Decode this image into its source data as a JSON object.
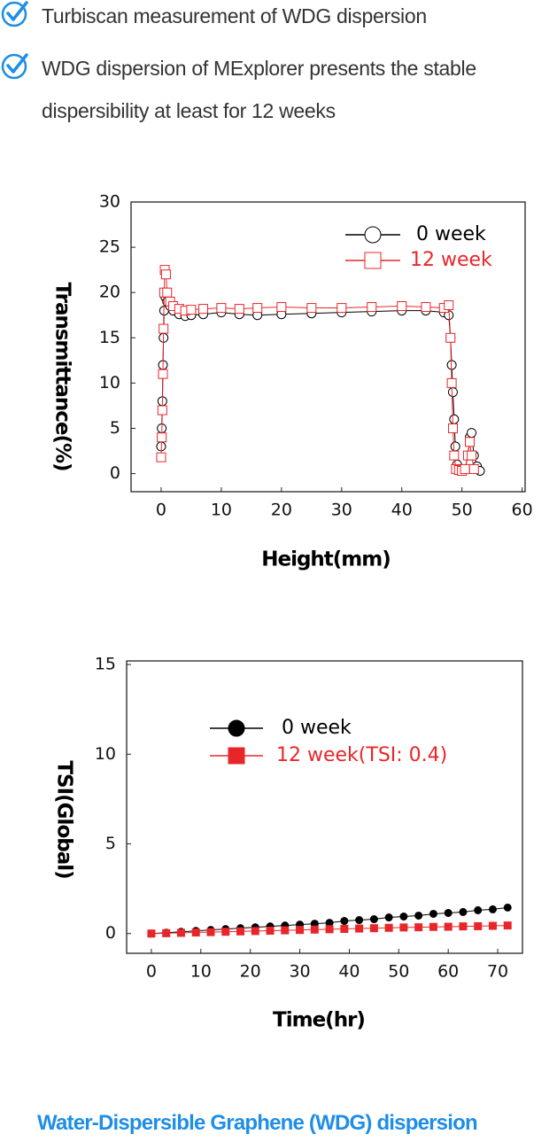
{
  "bullets": [
    "Turbiscan measurement of WDG dispersion",
    "WDG dispersion of MExplorer presents the stable dispersibility at least for 12 weeks"
  ],
  "caption": "Water-Dispersible Graphene (WDG) dispersion",
  "chart_data": [
    {
      "type": "line",
      "xlabel": "Height(mm)",
      "ylabel": "Transmittance(%)",
      "xlim": [
        -5,
        60.5
      ],
      "ylim": [
        -2,
        30
      ],
      "xticks": [
        0,
        10,
        20,
        30,
        40,
        50,
        60
      ],
      "yticks": [
        0,
        5,
        10,
        15,
        20,
        25,
        30
      ],
      "series": [
        {
          "name": "0 week",
          "color": "#000000",
          "marker": "circle",
          "filled": false,
          "x": [
            0,
            0.1,
            0.2,
            0.3,
            0.4,
            0.5,
            0.7,
            1,
            1.5,
            2,
            3,
            4,
            5,
            7,
            10,
            13,
            16,
            20,
            25,
            30,
            35,
            40,
            44,
            47,
            47.8,
            48.1,
            48.3,
            48.5,
            48.7,
            48.9,
            49.2,
            49.6,
            50,
            50.5,
            51,
            51.3,
            51.6,
            52,
            52.5,
            53
          ],
          "values": [
            3,
            5,
            8,
            12,
            15,
            18,
            19.5,
            19,
            18.5,
            18,
            17.6,
            17.4,
            17.5,
            17.6,
            17.8,
            17.6,
            17.5,
            17.6,
            17.7,
            17.8,
            17.9,
            18,
            18,
            17.8,
            17.5,
            15,
            12,
            9,
            6,
            3,
            1,
            0.4,
            0.3,
            0.5,
            2,
            4,
            4.5,
            2,
            0.8,
            0.3
          ]
        },
        {
          "name": "12 week",
          "color": "#e8262a",
          "marker": "square",
          "filled": false,
          "x": [
            0,
            0.1,
            0.2,
            0.3,
            0.4,
            0.5,
            0.6,
            0.8,
            1,
            1.5,
            2,
            3,
            4,
            5,
            7,
            10,
            13,
            16,
            20,
            25,
            30,
            35,
            40,
            44,
            47,
            47.8,
            48.1,
            48.3,
            48.5,
            48.7,
            49,
            49.5,
            50,
            50.5,
            51,
            51.3,
            51.6,
            52
          ],
          "values": [
            1.8,
            4,
            7,
            11,
            16,
            20,
            22.5,
            22,
            20,
            19,
            18.5,
            18.2,
            18,
            18.1,
            18.2,
            18.3,
            18.2,
            18.3,
            18.4,
            18.3,
            18.3,
            18.4,
            18.5,
            18.4,
            18.3,
            18.6,
            15,
            10,
            5,
            2,
            0.5,
            0.4,
            0.3,
            0.5,
            2,
            3.5,
            2,
            0.5
          ]
        }
      ]
    },
    {
      "type": "line",
      "xlabel": "Time(hr)",
      "ylabel": "TSI(Global)",
      "xlim": [
        -5,
        75
      ],
      "ylim": [
        -1.1,
        15.2
      ],
      "xticks": [
        0,
        10,
        20,
        30,
        40,
        50,
        60,
        70
      ],
      "yticks": [
        0,
        5,
        10,
        15
      ],
      "series": [
        {
          "name": "0 week",
          "color": "#000000",
          "marker": "circle",
          "filled": true,
          "x": [
            0,
            3,
            6,
            9,
            12,
            15,
            18,
            21,
            24,
            27,
            30,
            33,
            36,
            39,
            42,
            45,
            48,
            51,
            54,
            57,
            60,
            63,
            66,
            69,
            72
          ],
          "values": [
            0,
            0.05,
            0.1,
            0.15,
            0.2,
            0.25,
            0.3,
            0.35,
            0.4,
            0.45,
            0.5,
            0.55,
            0.6,
            0.7,
            0.75,
            0.8,
            0.9,
            0.95,
            1,
            1.1,
            1.15,
            1.2,
            1.3,
            1.35,
            1.45
          ]
        },
        {
          "name": "12 week(TSI: 0.4)",
          "color": "#e8262a",
          "marker": "square",
          "filled": true,
          "x": [
            0,
            3,
            6,
            9,
            12,
            15,
            18,
            21,
            24,
            27,
            30,
            33,
            36,
            39,
            42,
            45,
            48,
            51,
            54,
            57,
            60,
            63,
            66,
            69,
            72
          ],
          "values": [
            0,
            0.02,
            0.04,
            0.06,
            0.08,
            0.1,
            0.12,
            0.14,
            0.16,
            0.18,
            0.2,
            0.22,
            0.24,
            0.26,
            0.28,
            0.3,
            0.32,
            0.34,
            0.35,
            0.37,
            0.38,
            0.4,
            0.41,
            0.43,
            0.45
          ]
        }
      ]
    }
  ]
}
